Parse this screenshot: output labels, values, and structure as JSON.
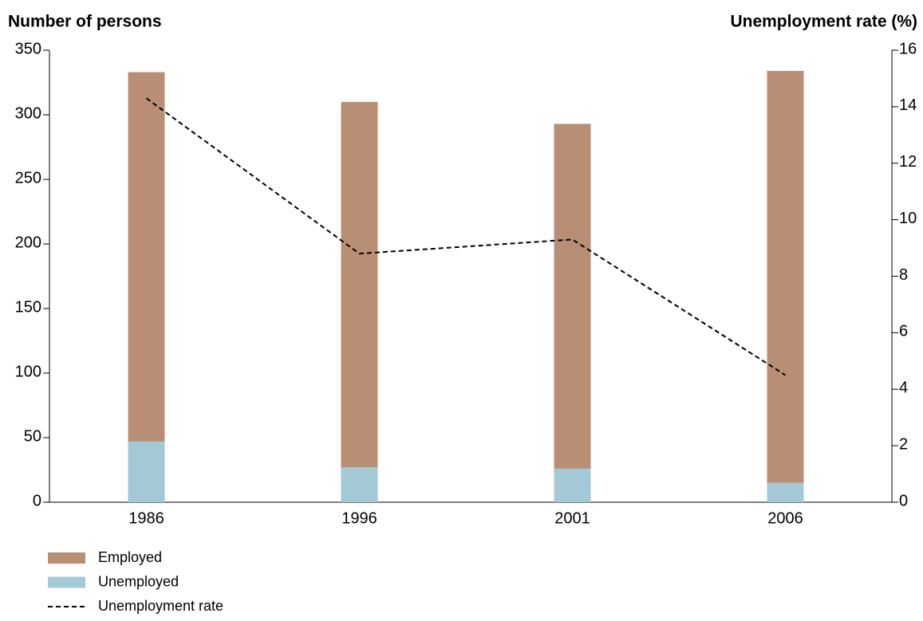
{
  "chart_data": {
    "type": "bar-line",
    "y_label": "Number of persons",
    "y2_label": "Unemployment rate (%)",
    "categories": [
      "1986",
      "1996",
      "2001",
      "2006"
    ],
    "series": [
      {
        "name": "Employed",
        "type": "bar",
        "color": "#b88f74",
        "values": [
          286,
          283,
          267,
          319
        ]
      },
      {
        "name": "Unemployed",
        "type": "bar",
        "color": "#a3c9d6",
        "values": [
          47,
          27,
          26,
          15
        ]
      },
      {
        "name": "Unemployment rate",
        "type": "line",
        "axis": "y2",
        "color": "#000000",
        "dashed": true,
        "values": [
          14.3,
          8.8,
          9.3,
          4.5
        ]
      }
    ],
    "ylim": [
      0,
      350
    ],
    "yticks": [
      0,
      50,
      100,
      150,
      200,
      250,
      300,
      350
    ],
    "y2lim": [
      0,
      16
    ],
    "y2ticks": [
      0,
      2,
      4,
      6,
      8,
      10,
      12,
      14,
      16
    ],
    "stacked": true
  }
}
